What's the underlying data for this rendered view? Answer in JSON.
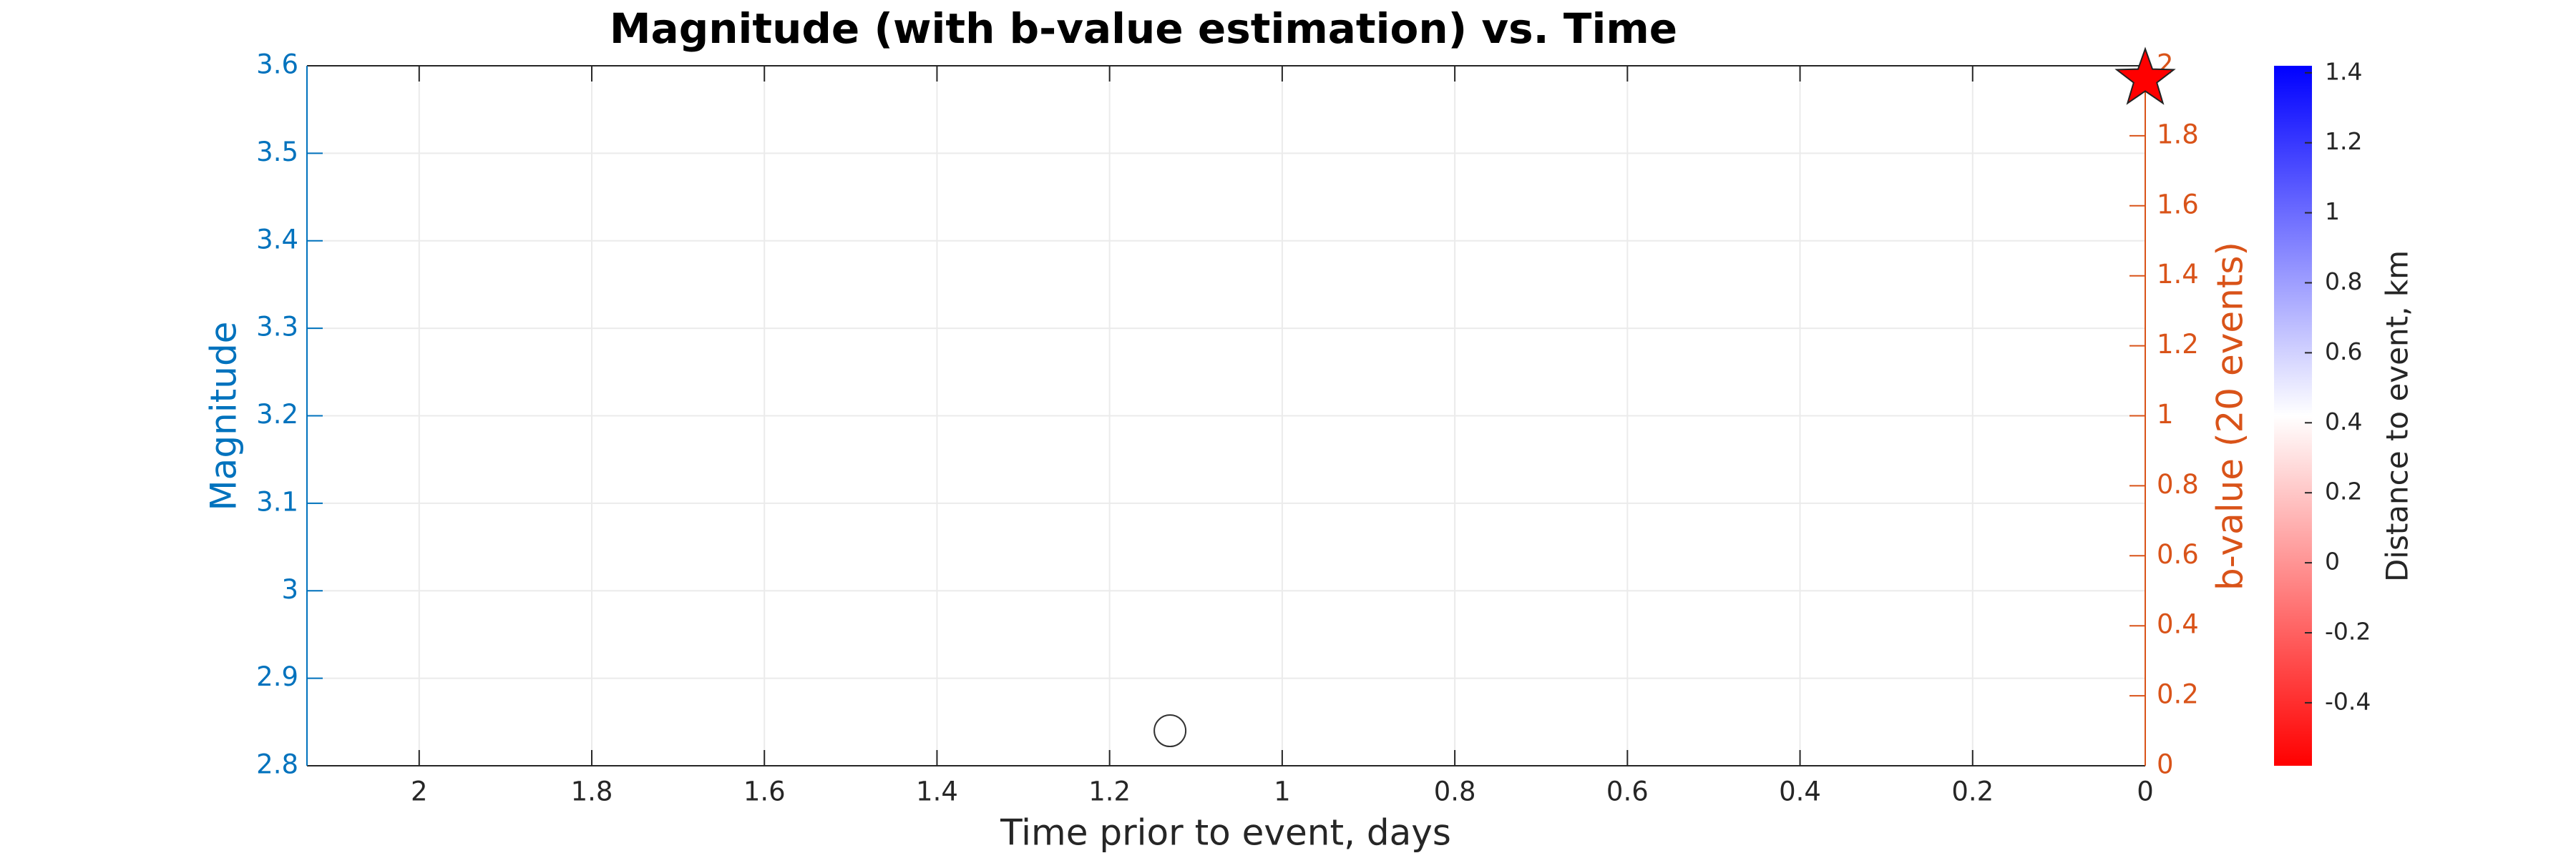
{
  "chart_data": {
    "type": "scatter",
    "title": "Magnitude (with b-value estimation) vs. Time",
    "x_label": "Time prior to event, days",
    "y_label": "Magnitude",
    "y2_label": "b-value (20 events)",
    "x_reversed": true,
    "xlim": [
      0,
      2.13
    ],
    "xticks": [
      0,
      0.2,
      0.4,
      0.6,
      0.8,
      1,
      1.2,
      1.4,
      1.6,
      1.8,
      2
    ],
    "ylim": [
      2.8,
      3.6
    ],
    "yticks": [
      2.8,
      2.9,
      3,
      3.1,
      3.2,
      3.3,
      3.4,
      3.5,
      3.6
    ],
    "y2lim": [
      0,
      2
    ],
    "y2ticks": [
      0,
      0.2,
      0.4,
      0.6,
      0.8,
      1,
      1.2,
      1.4,
      1.6,
      1.8,
      2
    ],
    "y_color": "#0072bd",
    "y2_color": "#d95319",
    "grid": true,
    "series": [
      {
        "x": [
          1.13
        ],
        "values": [
          2.84
        ],
        "marker": "circle",
        "color": "none",
        "edgecolor": "#333333"
      },
      {
        "x": [
          0
        ],
        "values": [
          3.585
        ],
        "marker": "star",
        "color": "#ff0000",
        "edgecolor": "#222222"
      }
    ],
    "colorbar": {
      "label": "Distance to event, km",
      "lim": [
        -0.58,
        1.42
      ],
      "ticks": [
        -0.4,
        -0.2,
        0,
        0.2,
        0.4,
        0.6,
        0.8,
        1,
        1.2,
        1.4
      ],
      "colormap": [
        "#ff0000",
        "#ffffff",
        "#0000ff"
      ]
    }
  }
}
